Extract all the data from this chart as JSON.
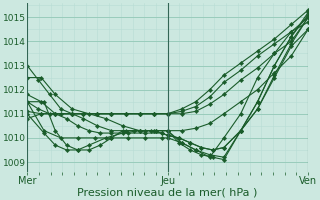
{
  "bg_color": "#cce8e0",
  "grid_color_major": "#99ccbb",
  "grid_color_minor": "#b8ddd4",
  "line_color": "#1a5c2a",
  "xlabel": "Pression niveau de la mer( hPa )",
  "xlabel_fontsize": 8,
  "yticks": [
    1009,
    1010,
    1011,
    1012,
    1013,
    1014,
    1015
  ],
  "xtick_labels": [
    "Mer",
    "Jeu",
    "Ven"
  ],
  "xtick_pos": [
    0,
    0.5,
    1.0
  ],
  "xlim": [
    0.0,
    1.0
  ],
  "ylim": [
    1008.6,
    1015.6
  ],
  "lines": [
    {
      "x": [
        0.0,
        0.04,
        0.08,
        0.12,
        0.16,
        0.2,
        0.25,
        0.3,
        0.35,
        0.4,
        0.45,
        0.5,
        0.55,
        0.6,
        0.65,
        0.7,
        0.76,
        0.82,
        0.88,
        0.94,
        1.0
      ],
      "y": [
        1013.0,
        1012.4,
        1011.8,
        1011.2,
        1011.0,
        1011.0,
        1011.0,
        1011.0,
        1011.0,
        1011.0,
        1011.0,
        1011.0,
        1011.2,
        1011.5,
        1012.0,
        1012.6,
        1013.1,
        1013.6,
        1014.1,
        1014.7,
        1015.3
      ]
    },
    {
      "x": [
        0.0,
        0.04,
        0.08,
        0.12,
        0.16,
        0.2,
        0.25,
        0.3,
        0.35,
        0.4,
        0.45,
        0.5,
        0.55,
        0.6,
        0.65,
        0.7,
        0.76,
        0.82,
        0.88,
        0.94,
        1.0
      ],
      "y": [
        1011.5,
        1011.2,
        1011.0,
        1011.0,
        1011.0,
        1011.0,
        1011.0,
        1011.0,
        1011.0,
        1011.0,
        1011.0,
        1011.0,
        1011.1,
        1011.3,
        1011.7,
        1012.3,
        1012.8,
        1013.4,
        1013.9,
        1014.4,
        1014.8
      ]
    },
    {
      "x": [
        0.0,
        0.05,
        0.1,
        0.16,
        0.2,
        0.25,
        0.3,
        0.35,
        0.4,
        0.45,
        0.5,
        0.55,
        0.6,
        0.65,
        0.7,
        0.76,
        0.82,
        0.88,
        0.94,
        1.0
      ],
      "y": [
        1011.1,
        1011.0,
        1011.0,
        1011.0,
        1011.0,
        1011.0,
        1011.0,
        1011.0,
        1011.0,
        1011.0,
        1011.0,
        1011.0,
        1011.1,
        1011.4,
        1011.8,
        1012.4,
        1012.9,
        1013.5,
        1014.0,
        1015.0
      ]
    },
    {
      "x": [
        0.0,
        0.05,
        0.1,
        0.16,
        0.2,
        0.25,
        0.3,
        0.35,
        0.4,
        0.45,
        0.5,
        0.55,
        0.6,
        0.65,
        0.7,
        0.76,
        0.82,
        0.88,
        0.94,
        1.0
      ],
      "y": [
        1010.8,
        1011.0,
        1011.0,
        1011.0,
        1010.8,
        1010.5,
        1010.3,
        1010.3,
        1010.3,
        1010.3,
        1010.3,
        1010.3,
        1010.4,
        1010.6,
        1011.0,
        1011.5,
        1012.0,
        1012.7,
        1013.4,
        1014.5
      ]
    },
    {
      "x": [
        0.0,
        0.06,
        0.12,
        0.18,
        0.24,
        0.3,
        0.36,
        0.42,
        0.48,
        0.5,
        0.55,
        0.6,
        0.65,
        0.7,
        0.76,
        0.82,
        0.88,
        0.94,
        1.0
      ],
      "y": [
        1011.5,
        1010.3,
        1010.0,
        1010.0,
        1010.0,
        1010.0,
        1010.0,
        1010.0,
        1010.0,
        1010.0,
        1009.8,
        1009.5,
        1009.3,
        1009.2,
        1010.3,
        1011.5,
        1013.0,
        1014.2,
        1015.1
      ]
    },
    {
      "x": [
        0.0,
        0.06,
        0.1,
        0.14,
        0.18,
        0.22,
        0.28,
        0.34,
        0.4,
        0.46,
        0.5,
        0.55,
        0.6,
        0.65,
        0.7,
        0.76,
        0.82,
        0.88,
        0.94,
        1.0
      ],
      "y": [
        1011.0,
        1010.2,
        1009.7,
        1009.5,
        1009.5,
        1009.7,
        1010.0,
        1010.2,
        1010.3,
        1010.3,
        1010.3,
        1009.8,
        1009.5,
        1009.2,
        1010.0,
        1011.0,
        1012.5,
        1013.5,
        1014.4,
        1015.0
      ]
    },
    {
      "x": [
        0.0,
        0.06,
        0.1,
        0.14,
        0.18,
        0.22,
        0.26,
        0.3,
        0.34,
        0.38,
        0.42,
        0.46,
        0.5,
        0.54,
        0.58,
        0.62,
        0.66,
        0.7,
        0.76,
        0.82,
        0.88,
        0.94,
        1.0
      ],
      "y": [
        1011.5,
        1011.5,
        1010.3,
        1009.7,
        1009.5,
        1009.5,
        1009.7,
        1010.0,
        1010.3,
        1010.3,
        1010.3,
        1010.3,
        1010.3,
        1009.8,
        1009.5,
        1009.3,
        1009.2,
        1009.1,
        1010.3,
        1011.5,
        1013.0,
        1014.2,
        1015.2
      ]
    },
    {
      "x": [
        0.0,
        0.05,
        0.1,
        0.16,
        0.22,
        0.28,
        0.34,
        0.4,
        0.44,
        0.48,
        0.5,
        0.54,
        0.58,
        0.62,
        0.66,
        0.7,
        0.76,
        0.82,
        0.88,
        0.94,
        1.0
      ],
      "y": [
        1012.5,
        1012.5,
        1011.8,
        1011.2,
        1011.0,
        1010.8,
        1010.5,
        1010.3,
        1010.3,
        1010.2,
        1010.1,
        1010.0,
        1009.8,
        1009.6,
        1009.5,
        1009.6,
        1010.3,
        1011.2,
        1012.6,
        1013.9,
        1015.0
      ]
    },
    {
      "x": [
        0.0,
        0.05,
        0.1,
        0.14,
        0.18,
        0.22,
        0.26,
        0.3,
        0.36,
        0.42,
        0.48,
        0.5,
        0.54,
        0.58,
        0.62,
        0.66,
        0.7,
        0.76,
        0.82,
        0.88,
        0.94,
        1.0
      ],
      "y": [
        1011.8,
        1011.5,
        1011.0,
        1010.8,
        1010.5,
        1010.3,
        1010.2,
        1010.2,
        1010.2,
        1010.2,
        1010.2,
        1010.1,
        1010.0,
        1009.8,
        1009.6,
        1009.5,
        1009.6,
        1010.3,
        1011.2,
        1012.5,
        1013.8,
        1014.5
      ]
    }
  ]
}
